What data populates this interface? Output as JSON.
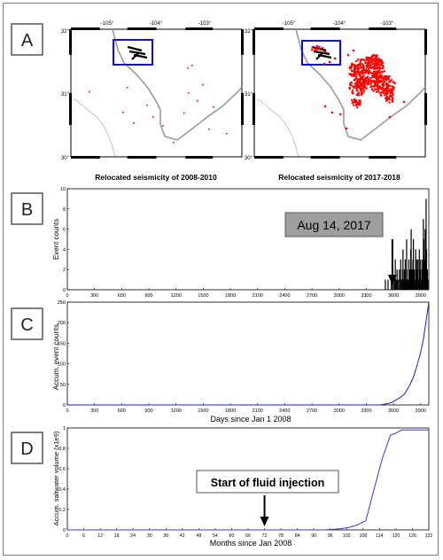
{
  "panels": {
    "A": {
      "label": "A"
    },
    "B": {
      "label": "B"
    },
    "C": {
      "label": "C"
    },
    "D": {
      "label": "D"
    }
  },
  "maps": {
    "lon_ticks": [
      "-105°",
      "-104°",
      "-103°"
    ],
    "lat_ticks": [
      "32°",
      "31°",
      "30°"
    ],
    "left_caption": "Relocated seismicity of 2008-2010",
    "right_caption": "Relocated seismicity of 2017-2018",
    "event_color": "#ff0000",
    "box_color": "#1010d0",
    "river_color": "#8c8c8c",
    "border_color": "#9a9a9a"
  },
  "callouts": {
    "aug_label": "Aug 14, 2017",
    "injection_label": "Start of fluid injection"
  },
  "chart_data": [
    {
      "type": "bar",
      "title": "",
      "xlabel": "",
      "ylabel": "Event counts",
      "xlim": [
        0,
        3990
      ],
      "ylim": [
        0,
        10
      ],
      "xticks": [
        0,
        300,
        600,
        900,
        1200,
        1500,
        1800,
        2100,
        2400,
        2700,
        3000,
        3300,
        3600,
        3900
      ],
      "yticks": [
        0,
        2,
        4,
        6,
        8,
        10
      ],
      "color": "#000000",
      "points": [
        [
          3510,
          1
        ],
        [
          3540,
          1
        ],
        [
          3575,
          1
        ],
        [
          3590,
          2
        ],
        [
          3600,
          1
        ],
        [
          3615,
          1
        ],
        [
          3620,
          3
        ],
        [
          3630,
          1
        ],
        [
          3640,
          2
        ],
        [
          3650,
          1
        ],
        [
          3665,
          2
        ],
        [
          3670,
          1
        ],
        [
          3680,
          3
        ],
        [
          3690,
          1
        ],
        [
          3700,
          2
        ],
        [
          3705,
          4
        ],
        [
          3715,
          1
        ],
        [
          3720,
          2
        ],
        [
          3730,
          3
        ],
        [
          3735,
          1
        ],
        [
          3745,
          5
        ],
        [
          3750,
          2
        ],
        [
          3760,
          1
        ],
        [
          3770,
          3
        ],
        [
          3780,
          2
        ],
        [
          3790,
          4
        ],
        [
          3795,
          6
        ],
        [
          3805,
          2
        ],
        [
          3815,
          3
        ],
        [
          3820,
          5
        ],
        [
          3830,
          2
        ],
        [
          3840,
          1
        ],
        [
          3845,
          4
        ],
        [
          3855,
          3
        ],
        [
          3860,
          2
        ],
        [
          3870,
          3
        ],
        [
          3875,
          1
        ],
        [
          3885,
          4
        ],
        [
          3890,
          2
        ],
        [
          3900,
          3
        ],
        [
          3905,
          1
        ],
        [
          3915,
          2
        ],
        [
          3920,
          3
        ],
        [
          3930,
          7
        ],
        [
          3935,
          5
        ],
        [
          3945,
          3
        ],
        [
          3950,
          6
        ],
        [
          3960,
          9
        ],
        [
          3965,
          4
        ],
        [
          3975,
          2
        ],
        [
          3980,
          1
        ]
      ],
      "annotation": {
        "x": 3588,
        "text": "Aug 14, 2017"
      }
    },
    {
      "type": "line",
      "title": "",
      "xlabel": "Days since Jan 1 2008",
      "ylabel": "Accum. event counts",
      "xlim": [
        0,
        3990
      ],
      "ylim": [
        0,
        250
      ],
      "xticks": [
        0,
        300,
        600,
        900,
        1200,
        1500,
        1800,
        2100,
        2400,
        2700,
        3000,
        3300,
        3600,
        3900
      ],
      "yticks": [
        0,
        50,
        100,
        150,
        200,
        250
      ],
      "color": "#2020c0",
      "x": [
        0,
        3450,
        3500,
        3550,
        3580,
        3610,
        3660,
        3720,
        3780,
        3820,
        3860,
        3900,
        3930,
        3960,
        3990
      ],
      "y": [
        0,
        0,
        2,
        4,
        6,
        10,
        16,
        26,
        48,
        68,
        96,
        128,
        160,
        205,
        250
      ]
    },
    {
      "type": "line",
      "title": "",
      "xlabel": "Months since Jan 2008",
      "ylabel": "Accum. saltwater volume (x1e9)",
      "xlim": [
        0,
        132
      ],
      "ylim": [
        0,
        1
      ],
      "xticks": [
        0,
        6,
        12,
        18,
        24,
        30,
        36,
        42,
        48,
        54,
        60,
        66,
        72,
        78,
        84,
        90,
        96,
        102,
        108,
        114,
        120,
        126,
        132
      ],
      "yticks": [
        0,
        0.2,
        0.4,
        0.6,
        0.8,
        1
      ],
      "color": "#3a3ad0",
      "x": [
        0,
        94,
        97,
        100,
        103,
        106,
        109,
        112,
        115,
        118,
        120,
        122,
        126,
        132
      ],
      "y": [
        0,
        0,
        0.005,
        0.012,
        0.025,
        0.05,
        0.09,
        0.4,
        0.7,
        0.93,
        0.95,
        0.98,
        0.98,
        0.98
      ],
      "annotation": {
        "x": 72,
        "text": "Start of fluid injection"
      }
    }
  ]
}
